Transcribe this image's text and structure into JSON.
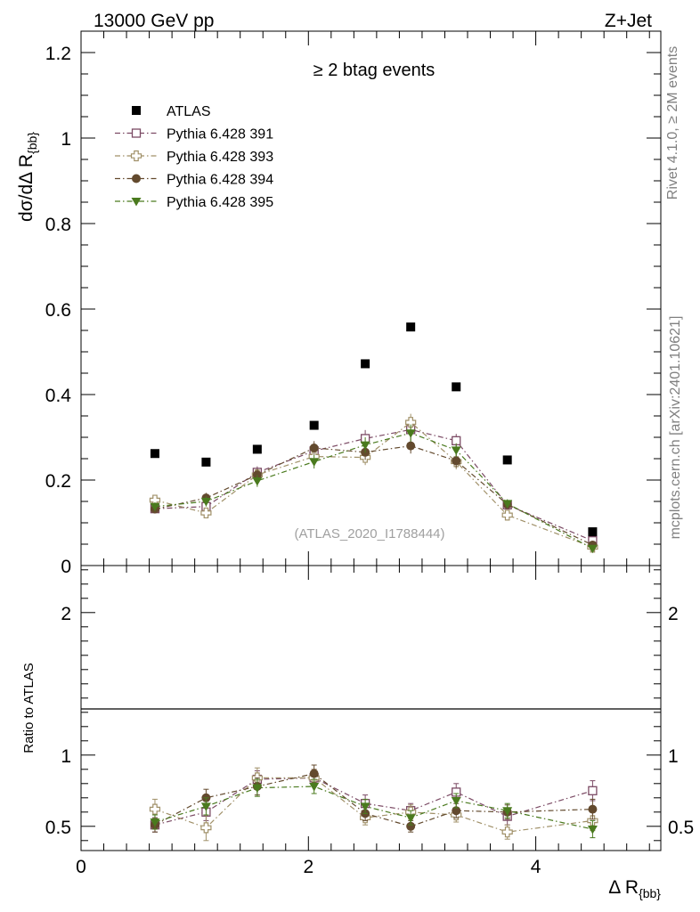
{
  "header": {
    "left": "13000 GeV pp",
    "right": "Z+Jet"
  },
  "side": {
    "rivet": "Rivet 4.1.0, ≥ 2M events",
    "mcplots": "mcplots.cern.ch [arXiv:2401.10621]"
  },
  "chart_data": {
    "type": "scatter",
    "title": "≥ 2 btag events",
    "watermark": "(ATLAS_2020_I1788444)",
    "xlabel": "Δ R",
    "xlabel_sub": "{bb}",
    "ylabel": "dσ/dΔ R",
    "ylabel_sub": "{bb}",
    "ratio_ylabel": "Ratio to ATLAS",
    "xlim": [
      0,
      5.1
    ],
    "ylim": [
      0,
      1.25
    ],
    "ratio_ylim": [
      0.33,
      2.33
    ],
    "xticks": [
      0,
      2,
      4
    ],
    "xtick_labels": [
      "0",
      "2",
      "4"
    ],
    "yticks": [
      0,
      0.2,
      0.4,
      0.6,
      0.8,
      1,
      1.2
    ],
    "ytick_labels": [
      "0",
      "0.2",
      "0.4",
      "0.6",
      "0.8",
      "1",
      "1.2"
    ],
    "ratio_yticks": [
      0.5,
      1,
      2
    ],
    "ratio_ytick_labels": [
      "0.5",
      "1",
      "2"
    ],
    "x": [
      0.65,
      1.1,
      1.55,
      2.05,
      2.5,
      2.9,
      3.3,
      3.75,
      4.5
    ],
    "data": {
      "name": "ATLAS",
      "color": "#000000",
      "marker": "filled-square",
      "values": [
        0.262,
        0.242,
        0.272,
        0.328,
        0.472,
        0.558,
        0.418,
        0.247,
        0.079
      ]
    },
    "series": [
      {
        "name": "Pythia 6.428 391",
        "color": "#7b4a64",
        "marker": "open-square",
        "values": [
          0.133,
          0.138,
          0.218,
          0.268,
          0.297,
          0.318,
          0.292,
          0.142,
          0.058
        ],
        "errors": [
          0.01,
          0.012,
          0.014,
          0.016,
          0.02,
          0.02,
          0.016,
          0.01,
          0.006
        ],
        "ratio": [
          0.51,
          0.6,
          0.83,
          0.84,
          0.66,
          0.61,
          0.74,
          0.57,
          0.75
        ],
        "ratio_errors": [
          0.05,
          0.06,
          0.06,
          0.06,
          0.06,
          0.05,
          0.06,
          0.06,
          0.07
        ]
      },
      {
        "name": "Pythia 6.428 393",
        "color": "#a09068",
        "marker": "open-cross",
        "values": [
          0.153,
          0.123,
          0.212,
          0.255,
          0.253,
          0.335,
          0.243,
          0.118,
          0.043
        ],
        "errors": [
          0.012,
          0.012,
          0.014,
          0.016,
          0.018,
          0.02,
          0.018,
          0.01,
          0.006
        ],
        "ratio": [
          0.62,
          0.49,
          0.84,
          0.84,
          0.56,
          0.6,
          0.58,
          0.46,
          0.54
        ],
        "ratio_errors": [
          0.07,
          0.09,
          0.07,
          0.06,
          0.05,
          0.05,
          0.05,
          0.05,
          0.07
        ]
      },
      {
        "name": "Pythia 6.428 394",
        "color": "#634a2e",
        "marker": "filled-circle",
        "values": [
          0.132,
          0.158,
          0.212,
          0.275,
          0.265,
          0.28,
          0.245,
          0.143,
          0.048
        ],
        "errors": [
          0.01,
          0.012,
          0.014,
          0.016,
          0.018,
          0.018,
          0.016,
          0.01,
          0.006
        ],
        "ratio": [
          0.51,
          0.7,
          0.78,
          0.87,
          0.59,
          0.5,
          0.61,
          0.6,
          0.62
        ],
        "ratio_errors": [
          0.05,
          0.06,
          0.06,
          0.06,
          0.05,
          0.04,
          0.05,
          0.05,
          0.07
        ]
      },
      {
        "name": "Pythia 6.428 395",
        "color": "#4a7a1e",
        "marker": "filled-triangle-down",
        "values": [
          0.138,
          0.15,
          0.198,
          0.243,
          0.282,
          0.31,
          0.27,
          0.145,
          0.04
        ],
        "errors": [
          0.01,
          0.012,
          0.014,
          0.016,
          0.018,
          0.02,
          0.016,
          0.01,
          0.006
        ],
        "ratio": [
          0.53,
          0.64,
          0.77,
          0.78,
          0.64,
          0.56,
          0.68,
          0.61,
          0.48
        ],
        "ratio_errors": [
          0.05,
          0.06,
          0.06,
          0.05,
          0.05,
          0.05,
          0.05,
          0.05,
          0.06
        ]
      }
    ]
  }
}
